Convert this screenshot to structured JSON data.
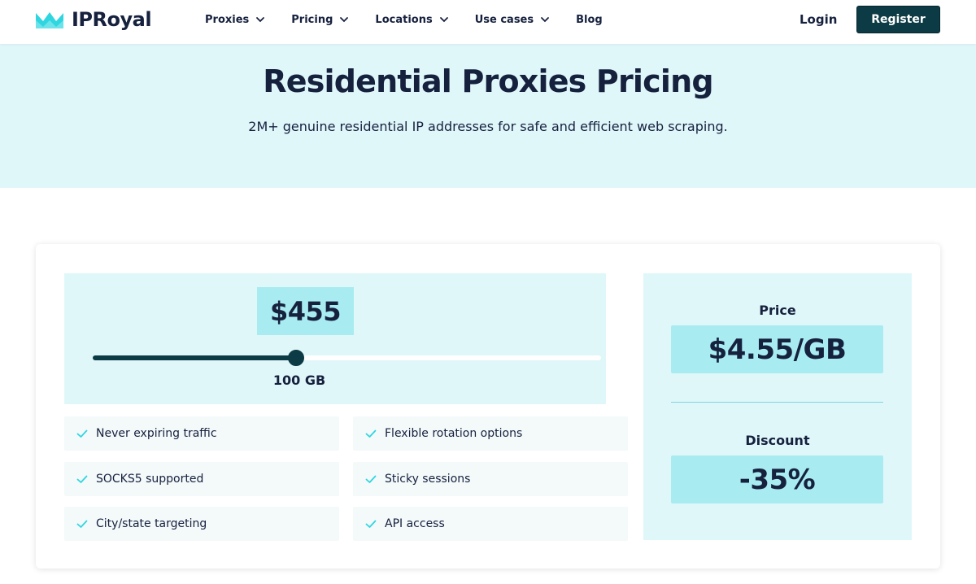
{
  "brand": {
    "name": "IPRoyal",
    "accent": "#2fd6e0",
    "dark": "#0c3b45"
  },
  "nav": {
    "items": [
      {
        "label": "Proxies",
        "dropdown": true
      },
      {
        "label": "Pricing",
        "dropdown": true
      },
      {
        "label": "Locations",
        "dropdown": true
      },
      {
        "label": "Use cases",
        "dropdown": true
      },
      {
        "label": "Blog",
        "dropdown": false
      }
    ],
    "login": "Login",
    "register": "Register"
  },
  "hero": {
    "title": "Residential Proxies Pricing",
    "subtitle": "2M+ genuine residential IP addresses for safe and efficient web scraping."
  },
  "calculator": {
    "total_price": "$455",
    "slider_level": 0.4,
    "traffic_label": "100 GB",
    "features": [
      "Never expiring traffic",
      "Flexible rotation options",
      "SOCKS5 supported",
      "Sticky sessions",
      "City/state targeting",
      "API access"
    ],
    "price_label": "Price",
    "price_value": "$4.55/GB",
    "discount_label": "Discount",
    "discount_value": "-35%"
  }
}
